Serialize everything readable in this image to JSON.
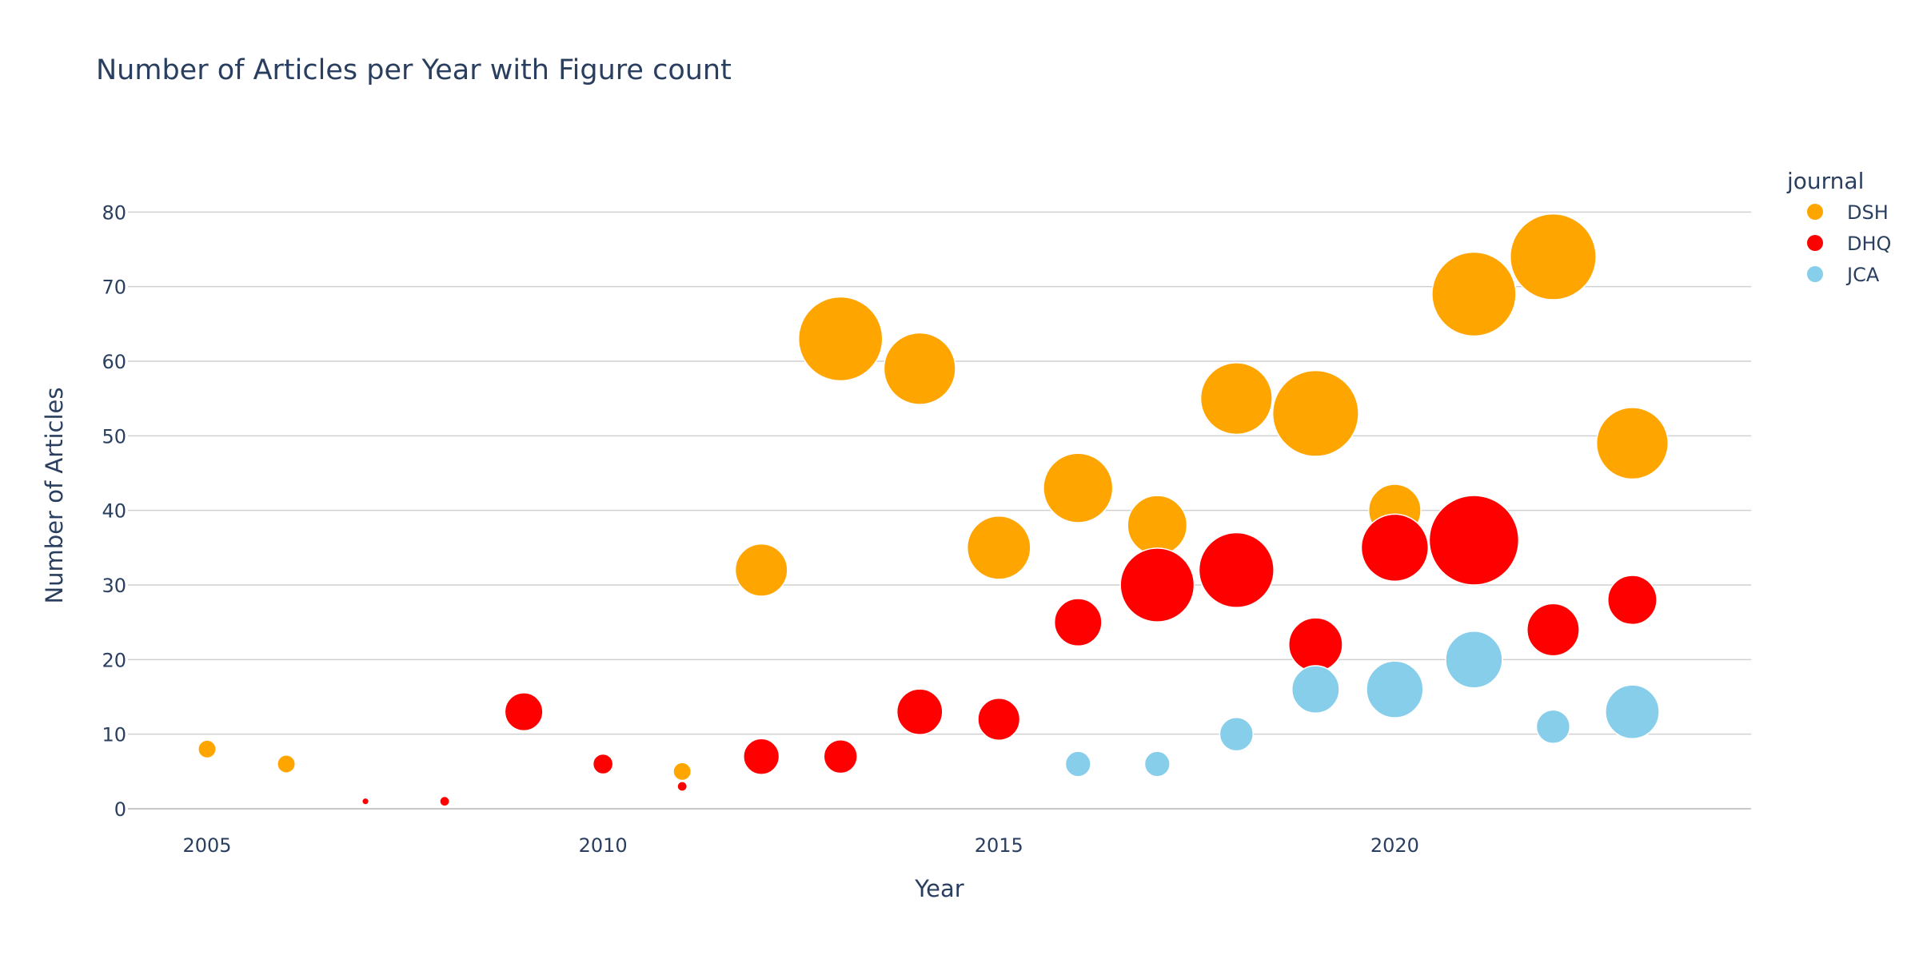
{
  "chart_data": {
    "type": "scatter",
    "title": "Number of Articles per Year with Figure count",
    "xlabel": "Year",
    "ylabel": "Number of Articles",
    "xlim": [
      2004,
      2024.5
    ],
    "ylim": [
      -3,
      87
    ],
    "x_ticks": [
      2005,
      2010,
      2015,
      2020
    ],
    "y_ticks": [
      0,
      10,
      20,
      30,
      40,
      50,
      60,
      70,
      80
    ],
    "grid": true,
    "legend_title": "journal",
    "legend_position": "top-right",
    "size_encoding": "Figure count (bubble area)",
    "series": [
      {
        "name": "DSH",
        "color": "#FFA500",
        "points": [
          {
            "x": 2005,
            "y": 8,
            "figures": 2
          },
          {
            "x": 2006,
            "y": 6,
            "figures": 2
          },
          {
            "x": 2011,
            "y": 5,
            "figures": 2
          },
          {
            "x": 2012,
            "y": 32,
            "figures": 17
          },
          {
            "x": 2013,
            "y": 63,
            "figures": 44
          },
          {
            "x": 2014,
            "y": 59,
            "figures": 32
          },
          {
            "x": 2015,
            "y": 35,
            "figures": 25
          },
          {
            "x": 2016,
            "y": 43,
            "figures": 30
          },
          {
            "x": 2017,
            "y": 38,
            "figures": 22
          },
          {
            "x": 2018,
            "y": 55,
            "figures": 32
          },
          {
            "x": 2019,
            "y": 53,
            "figures": 46
          },
          {
            "x": 2020,
            "y": 40,
            "figures": 17
          },
          {
            "x": 2021,
            "y": 69,
            "figures": 44
          },
          {
            "x": 2022,
            "y": 74,
            "figures": 46
          },
          {
            "x": 2023,
            "y": 49,
            "figures": 32
          }
        ]
      },
      {
        "name": "DHQ",
        "color": "#FF0000",
        "points": [
          {
            "x": 2007,
            "y": 1,
            "figures": 0.3
          },
          {
            "x": 2008,
            "y": 1,
            "figures": 0.6
          },
          {
            "x": 2009,
            "y": 13,
            "figures": 9
          },
          {
            "x": 2010,
            "y": 6,
            "figures": 2.5
          },
          {
            "x": 2011,
            "y": 3,
            "figures": 0.6
          },
          {
            "x": 2012,
            "y": 7,
            "figures": 8
          },
          {
            "x": 2013,
            "y": 7,
            "figures": 7
          },
          {
            "x": 2014,
            "y": 13,
            "figures": 13
          },
          {
            "x": 2015,
            "y": 12,
            "figures": 11
          },
          {
            "x": 2016,
            "y": 25,
            "figures": 14
          },
          {
            "x": 2017,
            "y": 30,
            "figures": 34
          },
          {
            "x": 2018,
            "y": 32,
            "figures": 35
          },
          {
            "x": 2019,
            "y": 22,
            "figures": 18
          },
          {
            "x": 2020,
            "y": 35,
            "figures": 28
          },
          {
            "x": 2021,
            "y": 36,
            "figures": 50
          },
          {
            "x": 2022,
            "y": 24,
            "figures": 17
          },
          {
            "x": 2023,
            "y": 28,
            "figures": 15
          }
        ]
      },
      {
        "name": "JCA",
        "color": "#87CEEB",
        "points": [
          {
            "x": 2016,
            "y": 6,
            "figures": 4
          },
          {
            "x": 2017,
            "y": 6,
            "figures": 4
          },
          {
            "x": 2018,
            "y": 10,
            "figures": 7
          },
          {
            "x": 2019,
            "y": 16,
            "figures": 14
          },
          {
            "x": 2020,
            "y": 16,
            "figures": 20
          },
          {
            "x": 2021,
            "y": 20,
            "figures": 20
          },
          {
            "x": 2022,
            "y": 11,
            "figures": 7
          },
          {
            "x": 2023,
            "y": 13,
            "figures": 18
          }
        ]
      }
    ]
  }
}
